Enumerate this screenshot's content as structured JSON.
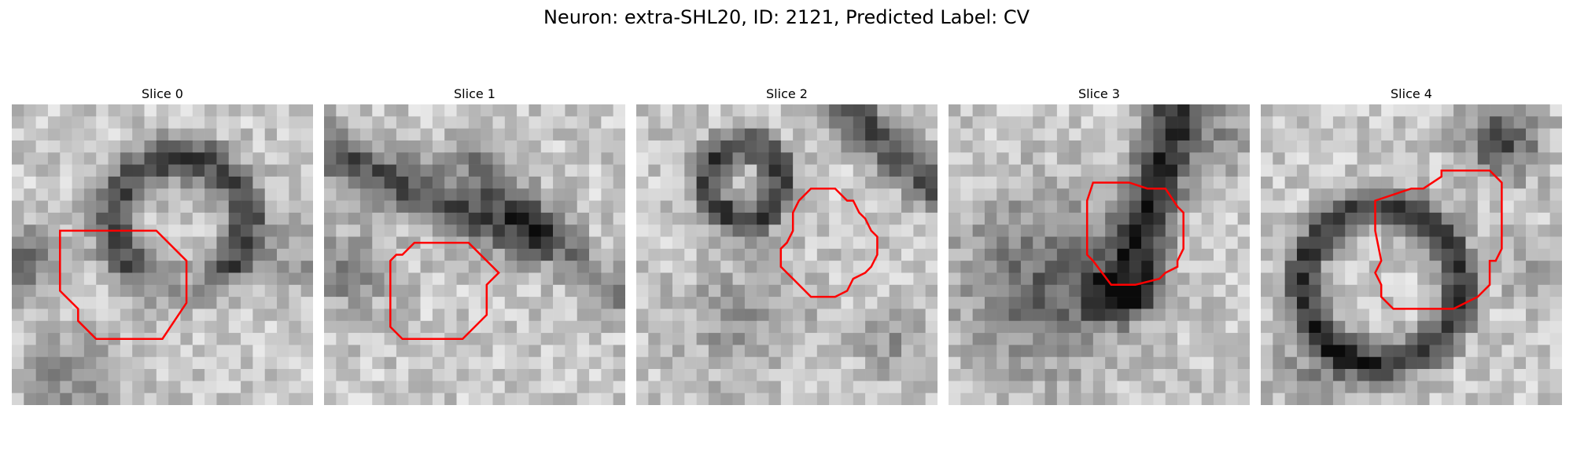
{
  "figure": {
    "title": "Neuron: extra-SHL20, ID: 2121, Predicted Label: CV"
  },
  "panels": [
    {
      "title": "Slice 0",
      "contour_color": "#ff0000"
    },
    {
      "title": "Slice 1",
      "contour_color": "#ff0000"
    },
    {
      "title": "Slice 2",
      "contour_color": "#ff0000"
    },
    {
      "title": "Slice 3",
      "contour_color": "#ff0000"
    },
    {
      "title": "Slice 4",
      "contour_color": "#ff0000"
    }
  ]
}
